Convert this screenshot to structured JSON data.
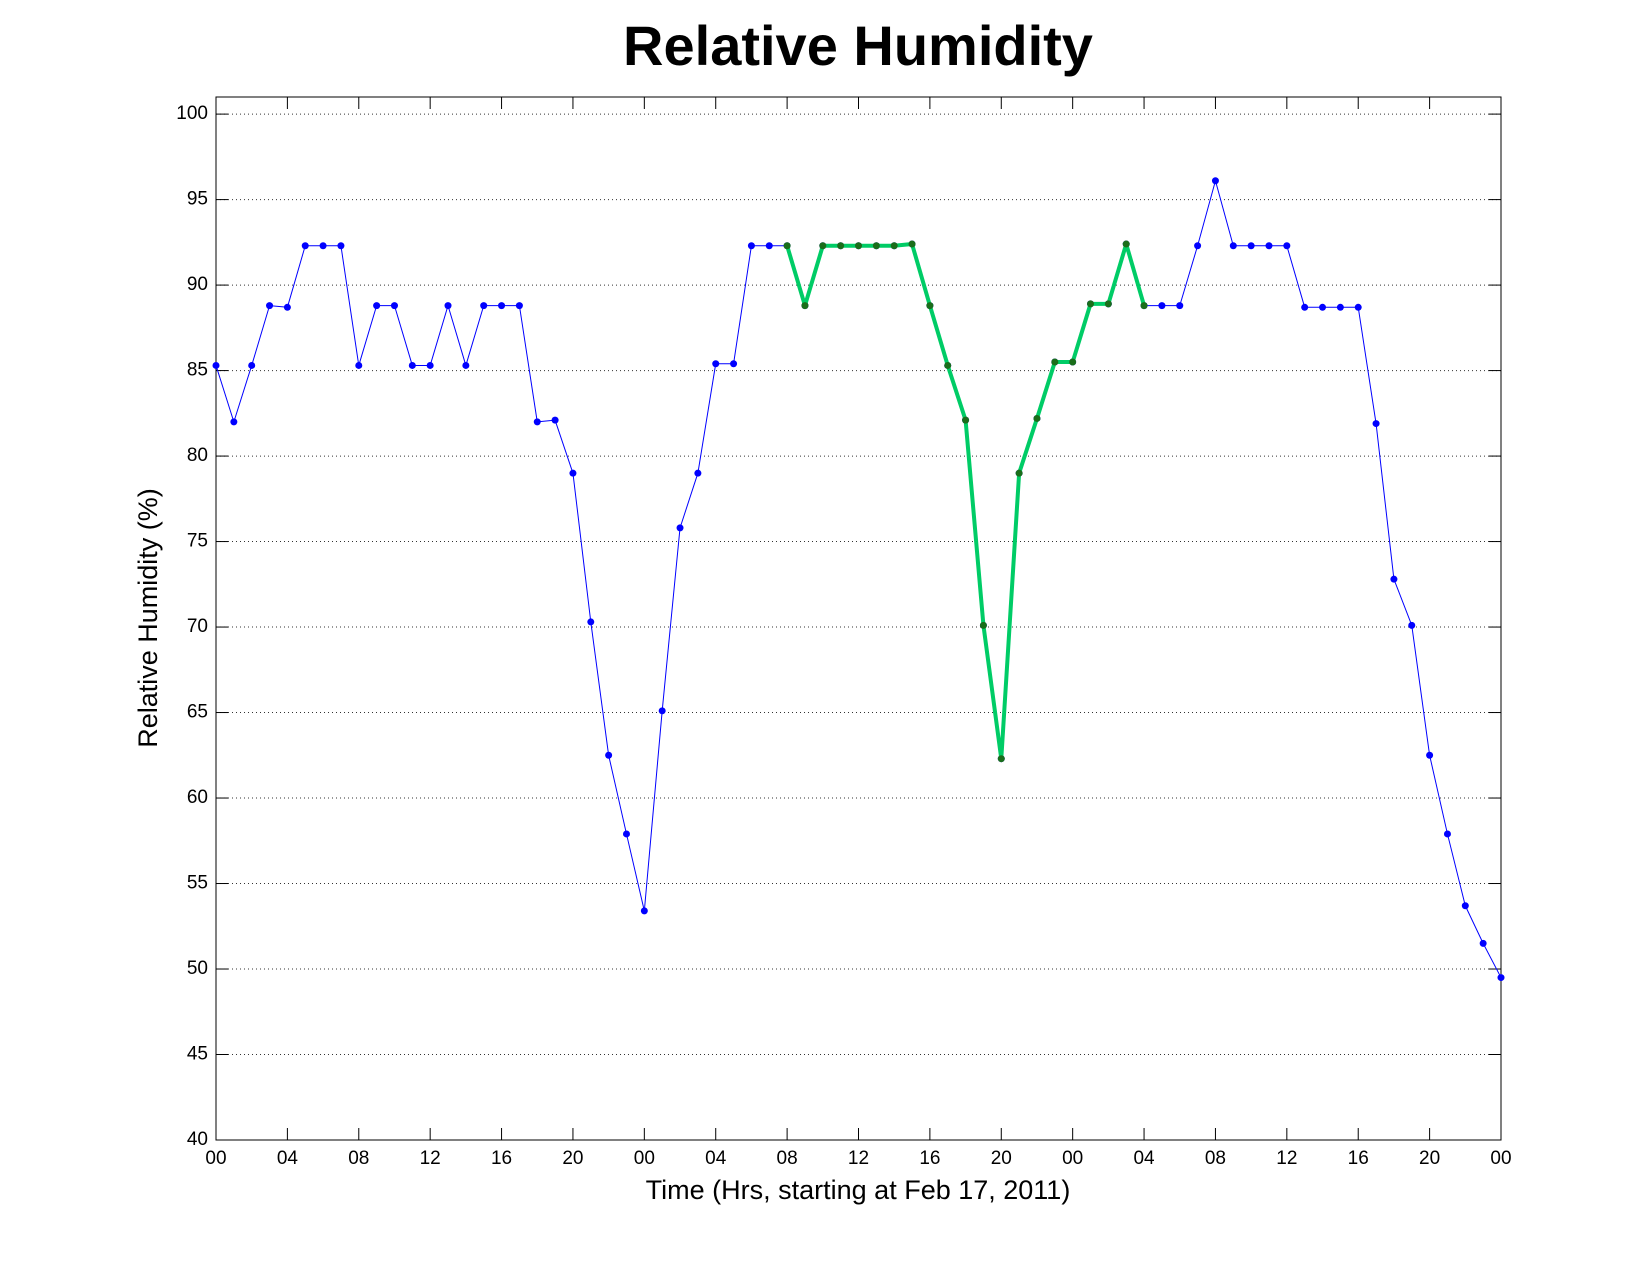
{
  "chart_data": {
    "type": "line",
    "title": "Relative Humidity",
    "xlabel": "Time (Hrs, starting at Feb 17, 2011)",
    "ylabel": "Relative Humidity (%)",
    "x": [
      0,
      1,
      2,
      3,
      4,
      5,
      6,
      7,
      8,
      9,
      10,
      11,
      12,
      13,
      14,
      15,
      16,
      17,
      18,
      19,
      20,
      21,
      22,
      23,
      24,
      25,
      26,
      27,
      28,
      29,
      30,
      31,
      32,
      33,
      34,
      35,
      36,
      37,
      38,
      39,
      40,
      41,
      42,
      43,
      44,
      45,
      46,
      47,
      48,
      49,
      50,
      51,
      52,
      53,
      54,
      55,
      56,
      57,
      58,
      59,
      60,
      61,
      62,
      63,
      64,
      65,
      66,
      67,
      68,
      69,
      70,
      71,
      72
    ],
    "series": [
      {
        "color": "#0000ff",
        "marker_color": "#0000ff",
        "line_width": 1,
        "values": [
          85.3,
          82.0,
          85.3,
          88.8,
          88.7,
          92.3,
          92.3,
          92.3,
          85.3,
          88.8,
          88.8,
          85.3,
          85.3,
          88.8,
          85.3,
          88.8,
          88.8,
          88.8,
          82.0,
          82.1,
          79.0,
          70.3,
          62.5,
          57.9,
          53.4,
          65.1,
          75.8,
          79.0,
          85.4,
          85.4,
          92.3,
          92.3,
          92.3,
          88.8,
          92.3,
          92.3,
          92.3,
          92.3,
          92.3,
          92.4,
          88.8,
          85.3,
          82.1,
          70.1,
          62.3,
          79.0,
          82.2,
          85.5,
          85.5,
          88.9,
          88.9,
          92.4,
          88.8,
          88.8,
          88.8,
          92.3,
          96.1,
          92.3,
          92.3,
          92.3,
          92.3,
          88.7,
          88.7,
          88.7,
          88.7,
          81.9,
          72.8,
          70.1,
          62.5,
          57.9,
          53.7,
          51.5,
          49.5
        ]
      },
      {
        "color": "#00cc66",
        "marker_color": "#1a6e1a",
        "line_width": 4,
        "values": [
          null,
          null,
          null,
          null,
          null,
          null,
          null,
          null,
          null,
          null,
          null,
          null,
          null,
          null,
          null,
          null,
          null,
          null,
          null,
          null,
          null,
          null,
          null,
          null,
          null,
          null,
          null,
          null,
          null,
          null,
          null,
          null,
          92.3,
          88.8,
          92.3,
          92.3,
          92.3,
          92.3,
          92.3,
          92.4,
          88.8,
          85.3,
          82.1,
          70.1,
          62.3,
          79.0,
          82.2,
          85.5,
          85.5,
          88.9,
          88.9,
          92.4,
          88.8,
          null,
          null,
          null,
          null,
          null,
          null,
          null,
          null,
          null,
          null,
          null,
          null,
          null,
          null,
          null,
          null,
          null,
          null,
          null,
          null
        ]
      }
    ],
    "xlim": [
      0,
      72
    ],
    "xticks": [
      {
        "value": 0,
        "label": "00"
      },
      {
        "value": 4,
        "label": "04"
      },
      {
        "value": 8,
        "label": "08"
      },
      {
        "value": 12,
        "label": "12"
      },
      {
        "value": 16,
        "label": "16"
      },
      {
        "value": 20,
        "label": "20"
      },
      {
        "value": 24,
        "label": "00"
      },
      {
        "value": 28,
        "label": "04"
      },
      {
        "value": 32,
        "label": "08"
      },
      {
        "value": 36,
        "label": "12"
      },
      {
        "value": 40,
        "label": "16"
      },
      {
        "value": 44,
        "label": "20"
      },
      {
        "value": 48,
        "label": "00"
      },
      {
        "value": 52,
        "label": "04"
      },
      {
        "value": 56,
        "label": "08"
      },
      {
        "value": 60,
        "label": "12"
      },
      {
        "value": 64,
        "label": "16"
      },
      {
        "value": 68,
        "label": "20"
      },
      {
        "value": 72,
        "label": "00"
      }
    ],
    "ylim": [
      40,
      101
    ],
    "yticks": [
      40,
      45,
      50,
      55,
      60,
      65,
      70,
      75,
      80,
      85,
      90,
      95,
      100
    ],
    "grid": true
  }
}
